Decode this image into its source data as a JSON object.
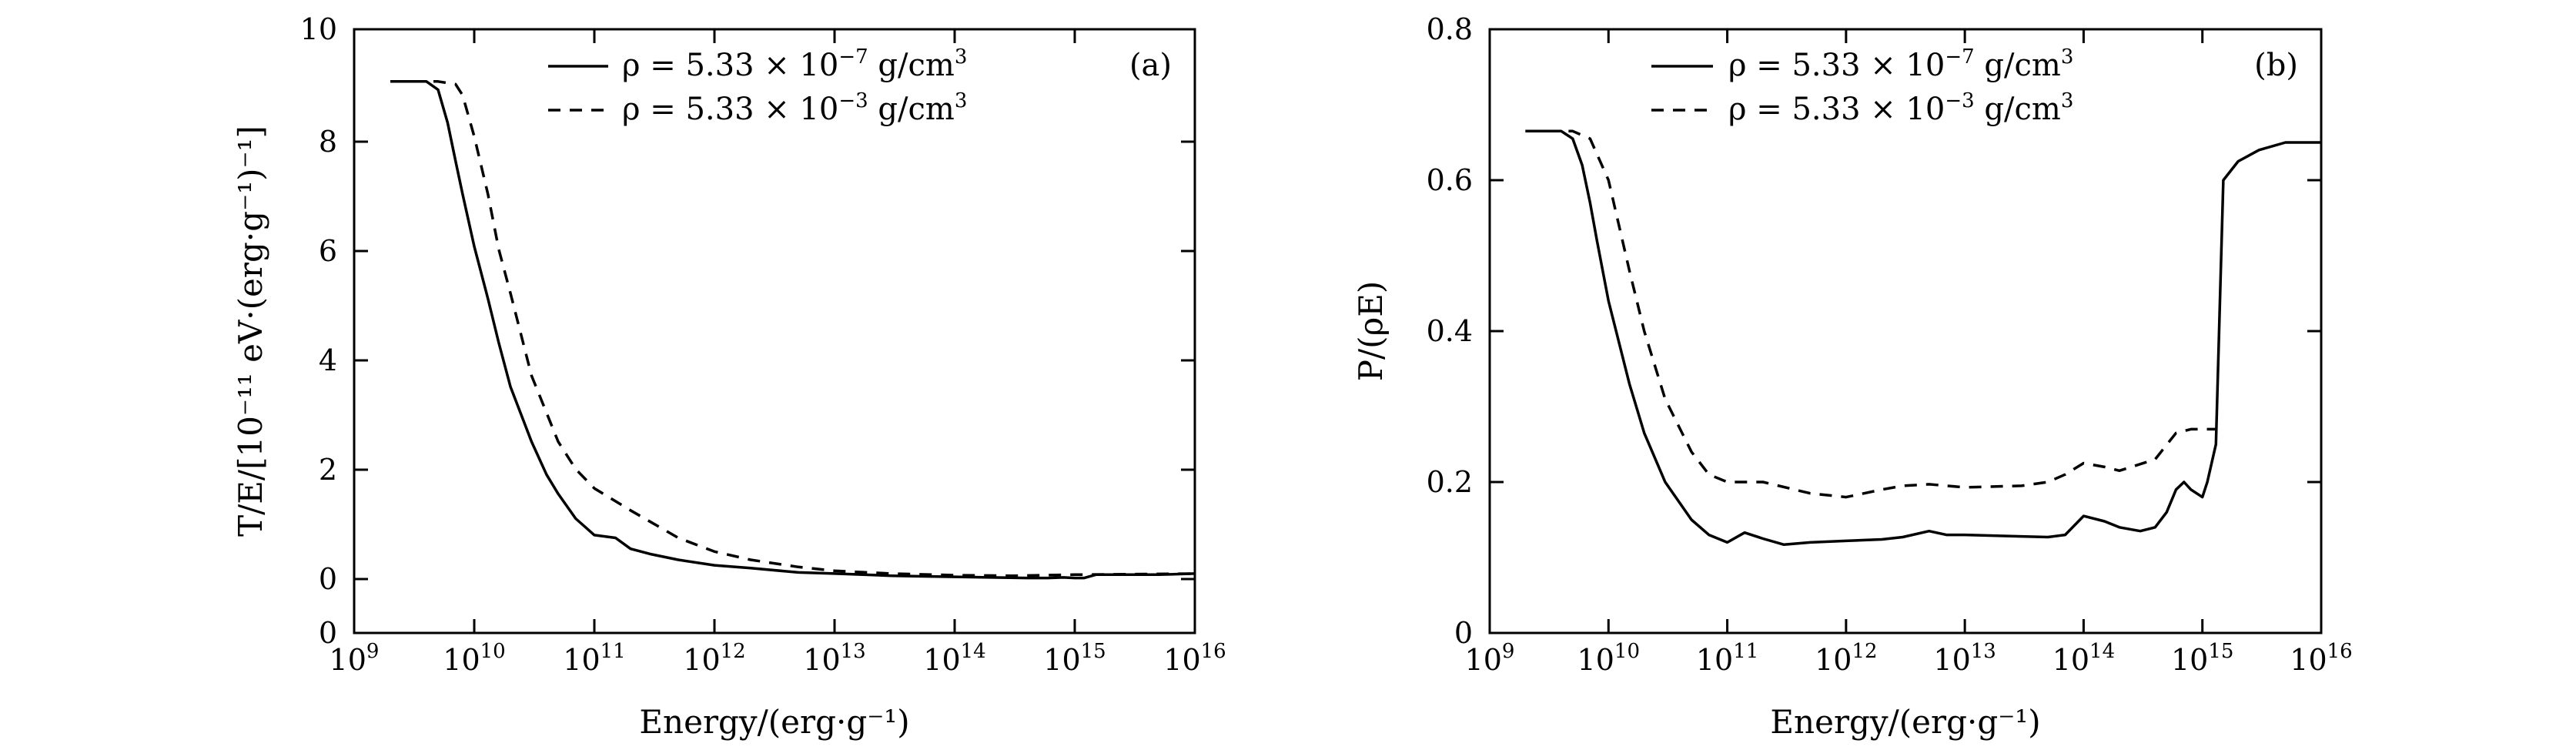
{
  "chart_data": [
    {
      "type": "line",
      "panel_label": "(a)",
      "xlabel": "Energy/(erg·g⁻¹)",
      "ylabel": "T/E/[10⁻¹¹ eV·(erg·g⁻¹)⁻¹]",
      "x_scale": "log",
      "xlim": [
        1000000000.0,
        1e+16
      ],
      "ylim": [
        0,
        10
      ],
      "x_ticks": [
        {
          "base": "10",
          "exp": "9"
        },
        {
          "base": "10",
          "exp": "10"
        },
        {
          "base": "10",
          "exp": "11"
        },
        {
          "base": "10",
          "exp": "12"
        },
        {
          "base": "10",
          "exp": "13"
        },
        {
          "base": "10",
          "exp": "14"
        },
        {
          "base": "10",
          "exp": "15"
        },
        {
          "base": "10",
          "exp": "16"
        }
      ],
      "y_ticks": [
        "0",
        "0",
        "2",
        "4",
        "6",
        "8",
        "10"
      ],
      "legend_position": "top-right",
      "series": [
        {
          "name": "ρ = 5.33×10⁻⁷ g/cm³",
          "legend_main": "ρ = 5.33 × 10",
          "legend_exp": "−7",
          "legend_unit": " g/cm",
          "legend_unit_exp": "3",
          "style": "solid",
          "x": [
            2000000000.0,
            3000000000.0,
            4000000000.0,
            5000000000.0,
            6000000000.0,
            7000000000.0,
            8000000000.0,
            10000000000.0,
            13000000000.0,
            16000000000.0,
            20000000000.0,
            30000000000.0,
            40000000000.0,
            50000000000.0,
            70000000000.0,
            100000000000.0,
            150000000000.0,
            200000000000.0,
            300000000000.0,
            500000000000.0,
            1000000000000.0,
            2000000000000.0,
            5000000000000.0,
            10000000000000.0,
            30000000000000.0,
            50000000000000.0,
            100000000000000.0,
            200000000000000.0,
            400000000000000.0,
            600000000000000.0,
            800000000000000.0,
            1000000000000000.0,
            1200000000000000.0,
            1500000000000000.0,
            2000000000000000.0,
            5000000000000000.0,
            1e+16
          ],
          "y": [
            9.05,
            9.05,
            9.05,
            8.9,
            8.3,
            7.6,
            7.0,
            6.05,
            5.1,
            4.3,
            3.5,
            2.5,
            1.9,
            1.55,
            1.1,
            0.8,
            0.75,
            0.55,
            0.45,
            0.35,
            0.25,
            0.2,
            0.12,
            0.1,
            0.06,
            0.05,
            0.04,
            0.03,
            0.02,
            0.02,
            0.03,
            0.02,
            0.02,
            0.08,
            0.08,
            0.08,
            0.1
          ]
        },
        {
          "name": "ρ = 5.33×10⁻³ g/cm³",
          "legend_main": "ρ = 5.33 × 10",
          "legend_exp": "−3",
          "legend_unit": " g/cm",
          "legend_unit_exp": "3",
          "style": "dashed",
          "x": [
            2000000000.0,
            5000000000.0,
            7000000000.0,
            8000000000.0,
            10000000000.0,
            13000000000.0,
            16000000000.0,
            20000000000.0,
            30000000000.0,
            50000000000.0,
            70000000000.0,
            100000000000.0,
            200000000000.0,
            500000000000.0,
            1000000000000.0,
            2000000000000.0,
            5000000000000.0,
            10000000000000.0,
            30000000000000.0,
            100000000000000.0,
            300000000000000.0,
            1000000000000000.0,
            1e+16
          ],
          "y": [
            9.05,
            9.05,
            9.0,
            8.8,
            8.05,
            7.0,
            6.0,
            5.2,
            3.7,
            2.5,
            2.0,
            1.65,
            1.25,
            0.75,
            0.5,
            0.35,
            0.22,
            0.15,
            0.1,
            0.07,
            0.06,
            0.08,
            0.1
          ]
        }
      ]
    },
    {
      "type": "line",
      "panel_label": "(b)",
      "xlabel": "Energy/(erg·g⁻¹)",
      "ylabel": "P/(ρE)",
      "x_scale": "log",
      "xlim": [
        1000000000.0,
        1e+16
      ],
      "ylim": [
        0,
        0.8
      ],
      "x_ticks": [
        {
          "base": "10",
          "exp": "9"
        },
        {
          "base": "10",
          "exp": "10"
        },
        {
          "base": "10",
          "exp": "11"
        },
        {
          "base": "10",
          "exp": "12"
        },
        {
          "base": "10",
          "exp": "13"
        },
        {
          "base": "10",
          "exp": "14"
        },
        {
          "base": "10",
          "exp": "15"
        },
        {
          "base": "10",
          "exp": "16"
        }
      ],
      "y_ticks": [
        "0",
        "0.2",
        "0.4",
        "0.6",
        "0.8"
      ],
      "legend_position": "top-right",
      "series": [
        {
          "name": "ρ = 5.33×10⁻⁷ g/cm³",
          "legend_main": "ρ = 5.33 × 10",
          "legend_exp": "−7",
          "legend_unit": " g/cm",
          "legend_unit_exp": "3",
          "style": "solid",
          "x": [
            2000000000.0,
            4000000000.0,
            5000000000.0,
            6000000000.0,
            7000000000.0,
            8000000000.0,
            10000000000.0,
            15000000000.0,
            20000000000.0,
            30000000000.0,
            50000000000.0,
            70000000000.0,
            100000000000.0,
            140000000000.0,
            200000000000.0,
            300000000000.0,
            500000000000.0,
            1000000000000.0,
            2000000000000.0,
            3000000000000.0,
            5000000000000.0,
            7000000000000.0,
            10000000000000.0,
            30000000000000.0,
            50000000000000.0,
            70000000000000.0,
            100000000000000.0,
            150000000000000.0,
            200000000000000.0,
            300000000000000.0,
            400000000000000.0,
            500000000000000.0,
            600000000000000.0,
            700000000000000.0,
            800000000000000.0,
            1000000000000000.0,
            1100000000000000.0,
            1300000000000000.0,
            1500000000000000.0,
            2000000000000000.0,
            3000000000000000.0,
            5000000000000000.0,
            1e+16
          ],
          "y": [
            0.665,
            0.665,
            0.655,
            0.62,
            0.57,
            0.52,
            0.44,
            0.33,
            0.265,
            0.2,
            0.15,
            0.13,
            0.12,
            0.133,
            0.125,
            0.117,
            0.12,
            0.122,
            0.124,
            0.127,
            0.135,
            0.13,
            0.13,
            0.128,
            0.127,
            0.13,
            0.155,
            0.148,
            0.14,
            0.135,
            0.14,
            0.16,
            0.19,
            0.2,
            0.19,
            0.18,
            0.2,
            0.25,
            0.6,
            0.625,
            0.64,
            0.65,
            0.65
          ]
        },
        {
          "name": "ρ = 5.33×10⁻³ g/cm³",
          "legend_main": "ρ = 5.33 × 10",
          "legend_exp": "−3",
          "legend_unit": " g/cm",
          "legend_unit_exp": "3",
          "style": "dashed",
          "x": [
            2000000000.0,
            5000000000.0,
            7000000000.0,
            10000000000.0,
            15000000000.0,
            20000000000.0,
            30000000000.0,
            50000000000.0,
            70000000000.0,
            100000000000.0,
            200000000000.0,
            500000000000.0,
            1000000000000.0,
            2000000000000.0,
            3000000000000.0,
            5000000000000.0,
            10000000000000.0,
            30000000000000.0,
            50000000000000.0,
            70000000000000.0,
            100000000000000.0,
            150000000000000.0,
            200000000000000.0,
            400000000000000.0,
            600000000000000.0,
            800000000000000.0,
            1000000000000000.0,
            1200000000000000.0,
            1300000000000000.0
          ],
          "y": [
            0.665,
            0.665,
            0.655,
            0.6,
            0.48,
            0.4,
            0.31,
            0.24,
            0.21,
            0.2,
            0.2,
            0.185,
            0.18,
            0.19,
            0.195,
            0.197,
            0.193,
            0.195,
            0.2,
            0.21,
            0.225,
            0.22,
            0.215,
            0.23,
            0.265,
            0.27,
            0.27,
            0.27,
            0.27
          ]
        }
      ]
    }
  ]
}
